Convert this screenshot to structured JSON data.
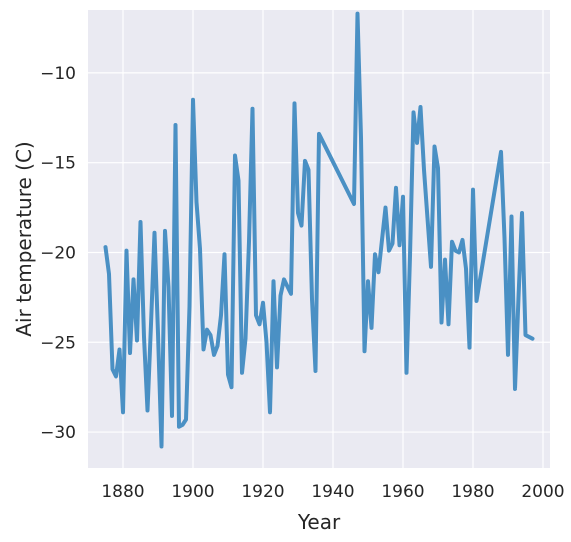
{
  "chart_data": {
    "type": "line",
    "title": "",
    "xlabel": "Year",
    "ylabel": "Air temperature (C)",
    "xlim": [
      1870,
      2002
    ],
    "ylim": [
      -32,
      -6.5
    ],
    "xticks": [
      1880,
      1900,
      1920,
      1940,
      1960,
      1980,
      2000
    ],
    "yticks": [
      -30,
      -25,
      -20,
      -15,
      -10
    ],
    "ytick_labels": [
      "−30",
      "−25",
      "−20",
      "−15",
      "−10"
    ],
    "grid": true,
    "background": "#EAEAF2",
    "line_color": "#4A90C4",
    "series": [
      {
        "x": [
          1875,
          1876,
          1877,
          1878,
          1879,
          1880,
          1881,
          1882,
          1883,
          1884,
          1885,
          1886,
          1887,
          1888,
          1889,
          1890,
          1891,
          1892,
          1893,
          1894,
          1895,
          1896,
          1897,
          1898,
          1899,
          1900,
          1901,
          1902,
          1903,
          1904,
          1905,
          1906,
          1907,
          1908,
          1909,
          1910,
          1911,
          1912,
          1913,
          1914,
          1915,
          1916,
          1917,
          1918,
          1919,
          1920,
          1921,
          1922,
          1923,
          1924,
          1925,
          1926,
          1927,
          1928,
          1929,
          1930,
          1931,
          1932,
          1933,
          1934,
          1935,
          1936,
          1946,
          1947,
          1948,
          1949,
          1950,
          1951,
          1952,
          1953,
          1954,
          1955,
          1956,
          1957,
          1958,
          1959,
          1960,
          1961,
          1962,
          1963,
          1964,
          1965,
          1966,
          1967,
          1968,
          1969,
          1970,
          1971,
          1972,
          1973,
          1974,
          1975,
          1976,
          1977,
          1978,
          1979,
          1980,
          1981,
          1988,
          1989,
          1990,
          1991,
          1992,
          1993,
          1994,
          1995,
          1997
        ],
        "values": [
          -19.7,
          -21.2,
          -26.5,
          -26.9,
          -25.4,
          -28.9,
          -19.9,
          -25.6,
          -21.5,
          -24.9,
          -18.3,
          -24.7,
          -28.8,
          -24.0,
          -18.9,
          -24.5,
          -30.8,
          -18.8,
          -21.9,
          -29.1,
          -12.9,
          -29.7,
          -29.6,
          -29.3,
          -23.0,
          -11.5,
          -17.2,
          -19.8,
          -25.4,
          -24.3,
          -24.6,
          -25.7,
          -25.2,
          -23.5,
          -20.1,
          -26.8,
          -27.5,
          -14.6,
          -16.0,
          -26.7,
          -24.8,
          -19.4,
          -12.0,
          -23.5,
          -24.0,
          -22.8,
          -25.0,
          -28.9,
          -21.6,
          -26.4,
          -22.4,
          -21.5,
          -21.9,
          -22.3,
          -11.7,
          -17.8,
          -18.5,
          -14.9,
          -15.4,
          -22.6,
          -26.6,
          -13.4,
          -17.3,
          -6.7,
          -13.6,
          -25.5,
          -21.6,
          -24.2,
          -20.1,
          -21.1,
          -19.3,
          -17.5,
          -19.9,
          -19.5,
          -16.4,
          -19.6,
          -16.9,
          -26.7,
          -20.2,
          -12.2,
          -13.9,
          -11.9,
          -15.4,
          -18.1,
          -20.8,
          -14.1,
          -15.3,
          -23.9,
          -20.4,
          -24.0,
          -19.4,
          -19.9,
          -20.0,
          -19.3,
          -20.9,
          -25.3,
          -16.5,
          -22.7,
          -14.4,
          -19.2,
          -25.7,
          -18.0,
          -27.6,
          -22.5,
          -17.8,
          -24.6,
          -24.8
        ]
      }
    ]
  }
}
